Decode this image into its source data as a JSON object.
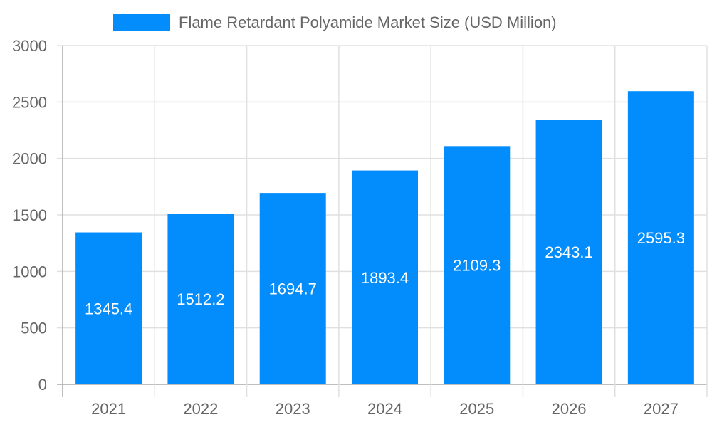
{
  "legend": {
    "label": "Flame Retardant Polyamide Market Size (USD Million)",
    "color": "#038cfc"
  },
  "y_ticks": [
    "0",
    "500",
    "1000",
    "1500",
    "2000",
    "2500",
    "3000"
  ],
  "x_ticks": [
    "2021",
    "2022",
    "2023",
    "2024",
    "2025",
    "2026",
    "2027"
  ],
  "bar_labels": [
    "1345.4",
    "1512.2",
    "1694.7",
    "1893.4",
    "2109.3",
    "2343.1",
    "2595.3"
  ],
  "chart_data": {
    "type": "bar",
    "title": "",
    "categories": [
      "2021",
      "2022",
      "2023",
      "2024",
      "2025",
      "2026",
      "2027"
    ],
    "series": [
      {
        "name": "Flame Retardant Polyamide Market Size (USD Million)",
        "values": [
          1345.4,
          1512.2,
          1694.7,
          1893.4,
          2109.3,
          2343.1,
          2595.3
        ],
        "color": "#038cfc"
      }
    ],
    "xlabel": "",
    "ylabel": "",
    "ylim": [
      0,
      3000
    ],
    "yticks": [
      0,
      500,
      1000,
      1500,
      2000,
      2500,
      3000
    ],
    "grid": true,
    "legend_position": "top",
    "data_labels": true
  }
}
